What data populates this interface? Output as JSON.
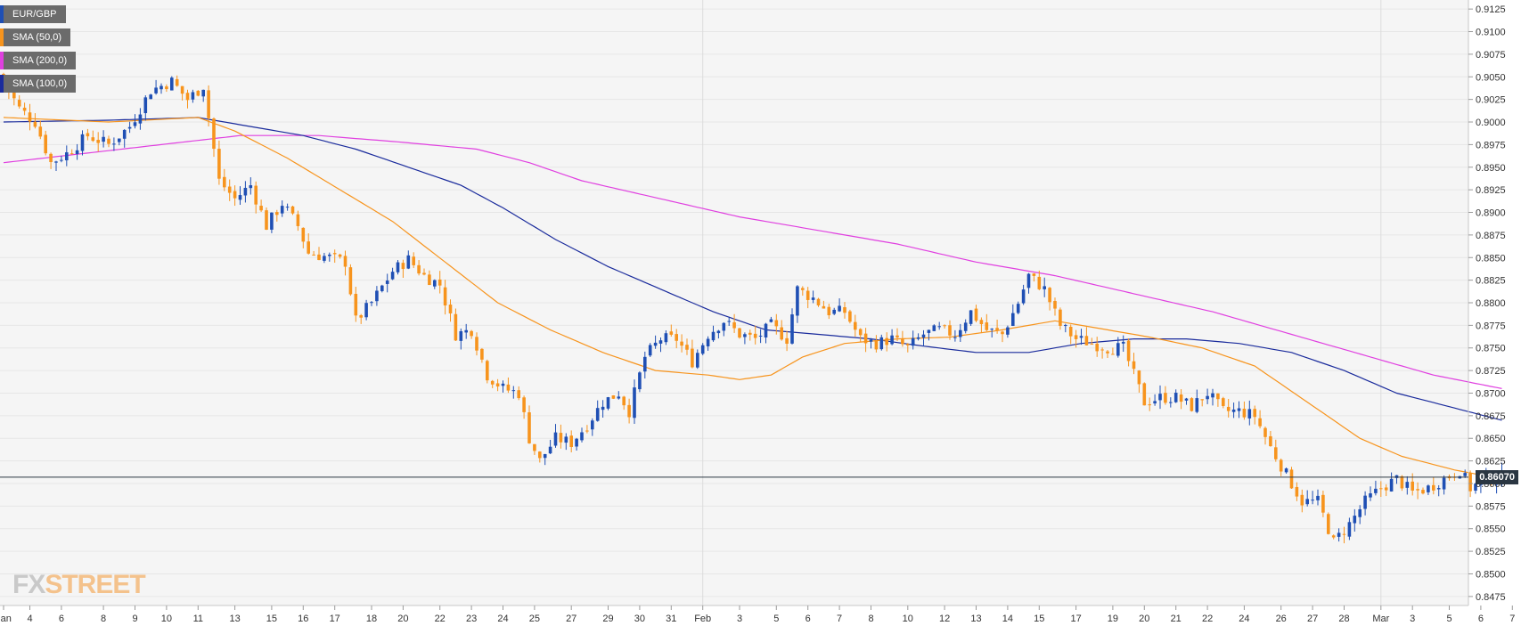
{
  "legend": [
    {
      "label": "EUR/GBP",
      "color": "#1f4fb4"
    },
    {
      "label": "SMA (50,0)",
      "color": "#f7941d"
    },
    {
      "label": "SMA (200,0)",
      "color": "#e040e0"
    },
    {
      "label": "SMA (100,0)",
      "color": "#1a2b9c"
    }
  ],
  "watermark": {
    "fx": "FX",
    "street": "STREET"
  },
  "price_label": "0.86070",
  "chart_data": {
    "type": "candlestick",
    "title": "",
    "series_name": "EUR/GBP",
    "up_color": "#1f4fb4",
    "down_color": "#f7941d",
    "ylim": [
      0.8465,
      0.9135
    ],
    "y_ticks": [
      "0.9125",
      "0.9100",
      "0.9075",
      "0.9050",
      "0.9025",
      "0.9000",
      "0.8975",
      "0.8950",
      "0.8925",
      "0.8900",
      "0.8875",
      "0.8850",
      "0.8825",
      "0.8800",
      "0.8775",
      "0.8750",
      "0.8725",
      "0.8700",
      "0.8675",
      "0.8650",
      "0.8625",
      "0.8600",
      "0.8575",
      "0.8550",
      "0.8525",
      "0.8500",
      "0.8475"
    ],
    "x_ticks": [
      {
        "label": "Jan",
        "c": 0
      },
      {
        "label": "4",
        "c": 5
      },
      {
        "label": "6",
        "c": 11
      },
      {
        "label": "8",
        "c": 19
      },
      {
        "label": "9",
        "c": 25
      },
      {
        "label": "10",
        "c": 31
      },
      {
        "label": "11",
        "c": 37
      },
      {
        "label": "13",
        "c": 44
      },
      {
        "label": "15",
        "c": 51
      },
      {
        "label": "16",
        "c": 57
      },
      {
        "label": "17",
        "c": 63
      },
      {
        "label": "18",
        "c": 70
      },
      {
        "label": "20",
        "c": 76
      },
      {
        "label": "22",
        "c": 83
      },
      {
        "label": "23",
        "c": 89
      },
      {
        "label": "24",
        "c": 95
      },
      {
        "label": "25",
        "c": 101
      },
      {
        "label": "27",
        "c": 108
      },
      {
        "label": "29",
        "c": 115
      },
      {
        "label": "30",
        "c": 121
      },
      {
        "label": "31",
        "c": 127
      },
      {
        "label": "Feb",
        "c": 133
      },
      {
        "label": "3",
        "c": 140
      },
      {
        "label": "5",
        "c": 147
      },
      {
        "label": "6",
        "c": 153
      },
      {
        "label": "7",
        "c": 159
      },
      {
        "label": "8",
        "c": 165
      },
      {
        "label": "10",
        "c": 172
      },
      {
        "label": "12",
        "c": 179
      },
      {
        "label": "13",
        "c": 185
      },
      {
        "label": "14",
        "c": 191
      },
      {
        "label": "15",
        "c": 197
      },
      {
        "label": "17",
        "c": 204
      },
      {
        "label": "19",
        "c": 211
      },
      {
        "label": "20",
        "c": 217
      },
      {
        "label": "21",
        "c": 223
      },
      {
        "label": "22",
        "c": 229
      },
      {
        "label": "24",
        "c": 236
      },
      {
        "label": "26",
        "c": 243
      },
      {
        "label": "27",
        "c": 249
      },
      {
        "label": "28",
        "c": 255
      },
      {
        "label": "Mar",
        "c": 262
      },
      {
        "label": "3",
        "c": 268
      },
      {
        "label": "5",
        "c": 275
      },
      {
        "label": "6",
        "c": 281
      },
      {
        "label": "7",
        "c": 287
      }
    ],
    "close_anchors": [
      [
        0,
        0.9045
      ],
      [
        3,
        0.9015
      ],
      [
        6,
        0.9
      ],
      [
        9,
        0.8955
      ],
      [
        12,
        0.8965
      ],
      [
        16,
        0.8985
      ],
      [
        20,
        0.8975
      ],
      [
        24,
        0.8995
      ],
      [
        28,
        0.9035
      ],
      [
        32,
        0.9045
      ],
      [
        35,
        0.9025
      ],
      [
        38,
        0.904
      ],
      [
        41,
        0.8935
      ],
      [
        44,
        0.8915
      ],
      [
        47,
        0.893
      ],
      [
        50,
        0.8885
      ],
      [
        53,
        0.891
      ],
      [
        56,
        0.8885
      ],
      [
        58,
        0.8855
      ],
      [
        62,
        0.885
      ],
      [
        65,
        0.8845
      ],
      [
        67,
        0.878
      ],
      [
        70,
        0.88
      ],
      [
        74,
        0.8835
      ],
      [
        77,
        0.8848
      ],
      [
        80,
        0.883
      ],
      [
        83,
        0.882
      ],
      [
        86,
        0.8765
      ],
      [
        89,
        0.877
      ],
      [
        92,
        0.872
      ],
      [
        95,
        0.8705
      ],
      [
        98,
        0.87
      ],
      [
        100,
        0.865
      ],
      [
        102,
        0.8625
      ],
      [
        105,
        0.865
      ],
      [
        108,
        0.8645
      ],
      [
        111,
        0.8665
      ],
      [
        114,
        0.869
      ],
      [
        117,
        0.87
      ],
      [
        119,
        0.868
      ],
      [
        122,
        0.874
      ],
      [
        125,
        0.876
      ],
      [
        128,
        0.876
      ],
      [
        131,
        0.8735
      ],
      [
        134,
        0.8765
      ],
      [
        137,
        0.878
      ],
      [
        140,
        0.8765
      ],
      [
        143,
        0.876
      ],
      [
        146,
        0.8775
      ],
      [
        149,
        0.876
      ],
      [
        151,
        0.8815
      ],
      [
        154,
        0.8805
      ],
      [
        157,
        0.879
      ],
      [
        160,
        0.879
      ],
      [
        163,
        0.876
      ],
      [
        166,
        0.8755
      ],
      [
        169,
        0.876
      ],
      [
        172,
        0.875
      ],
      [
        175,
        0.8765
      ],
      [
        178,
        0.877
      ],
      [
        181,
        0.8765
      ],
      [
        184,
        0.879
      ],
      [
        187,
        0.877
      ],
      [
        190,
        0.8765
      ],
      [
        193,
        0.88
      ],
      [
        195,
        0.883
      ],
      [
        198,
        0.8815
      ],
      [
        201,
        0.8775
      ],
      [
        204,
        0.876
      ],
      [
        207,
        0.8755
      ],
      [
        210,
        0.875
      ],
      [
        213,
        0.875
      ],
      [
        215,
        0.872
      ],
      [
        217,
        0.869
      ],
      [
        220,
        0.8695
      ],
      [
        223,
        0.8695
      ],
      [
        226,
        0.8685
      ],
      [
        229,
        0.87
      ],
      [
        232,
        0.868
      ],
      [
        235,
        0.868
      ],
      [
        238,
        0.8675
      ],
      [
        241,
        0.864
      ],
      [
        244,
        0.861
      ],
      [
        247,
        0.858
      ],
      [
        250,
        0.858
      ],
      [
        253,
        0.8535
      ],
      [
        256,
        0.8555
      ],
      [
        259,
        0.858
      ],
      [
        262,
        0.8595
      ],
      [
        265,
        0.8605
      ],
      [
        268,
        0.859
      ],
      [
        271,
        0.8595
      ],
      [
        274,
        0.8605
      ],
      [
        277,
        0.8615
      ],
      [
        279,
        0.8595
      ],
      [
        282,
        0.8605
      ],
      [
        285,
        0.8607
      ]
    ],
    "sma50": [
      [
        0,
        0.9005
      ],
      [
        20,
        0.9
      ],
      [
        37,
        0.9005
      ],
      [
        44,
        0.899
      ],
      [
        54,
        0.896
      ],
      [
        64,
        0.8925
      ],
      [
        74,
        0.889
      ],
      [
        84,
        0.8845
      ],
      [
        94,
        0.88
      ],
      [
        104,
        0.877
      ],
      [
        114,
        0.8745
      ],
      [
        124,
        0.8725
      ],
      [
        134,
        0.872
      ],
      [
        140,
        0.8715
      ],
      [
        146,
        0.872
      ],
      [
        152,
        0.874
      ],
      [
        160,
        0.8755
      ],
      [
        170,
        0.876
      ],
      [
        180,
        0.8762
      ],
      [
        190,
        0.877
      ],
      [
        200,
        0.878
      ],
      [
        210,
        0.877
      ],
      [
        218,
        0.8762
      ],
      [
        228,
        0.875
      ],
      [
        238,
        0.873
      ],
      [
        248,
        0.869
      ],
      [
        258,
        0.865
      ],
      [
        266,
        0.863
      ],
      [
        276,
        0.8615
      ],
      [
        285,
        0.8605
      ]
    ],
    "sma100": [
      [
        0,
        0.9
      ],
      [
        20,
        0.9002
      ],
      [
        37,
        0.9005
      ],
      [
        47,
        0.8995
      ],
      [
        57,
        0.8985
      ],
      [
        67,
        0.897
      ],
      [
        77,
        0.895
      ],
      [
        87,
        0.893
      ],
      [
        95,
        0.8905
      ],
      [
        105,
        0.887
      ],
      [
        115,
        0.884
      ],
      [
        125,
        0.8815
      ],
      [
        135,
        0.879
      ],
      [
        145,
        0.877
      ],
      [
        155,
        0.8765
      ],
      [
        165,
        0.876
      ],
      [
        175,
        0.8752
      ],
      [
        185,
        0.8745
      ],
      [
        195,
        0.8745
      ],
      [
        205,
        0.8755
      ],
      [
        215,
        0.876
      ],
      [
        225,
        0.876
      ],
      [
        235,
        0.8755
      ],
      [
        245,
        0.8745
      ],
      [
        255,
        0.8725
      ],
      [
        265,
        0.87
      ],
      [
        275,
        0.8685
      ],
      [
        285,
        0.867
      ]
    ],
    "sma200": [
      [
        0,
        0.8955
      ],
      [
        15,
        0.8965
      ],
      [
        30,
        0.8975
      ],
      [
        45,
        0.8985
      ],
      [
        60,
        0.8985
      ],
      [
        75,
        0.8978
      ],
      [
        90,
        0.897
      ],
      [
        100,
        0.8955
      ],
      [
        110,
        0.8935
      ],
      [
        125,
        0.8915
      ],
      [
        140,
        0.8895
      ],
      [
        155,
        0.888
      ],
      [
        170,
        0.8865
      ],
      [
        185,
        0.8845
      ],
      [
        200,
        0.883
      ],
      [
        215,
        0.881
      ],
      [
        230,
        0.879
      ],
      [
        245,
        0.8765
      ],
      [
        260,
        0.874
      ],
      [
        272,
        0.872
      ],
      [
        285,
        0.8705
      ]
    ],
    "current_price": 0.8607
  }
}
